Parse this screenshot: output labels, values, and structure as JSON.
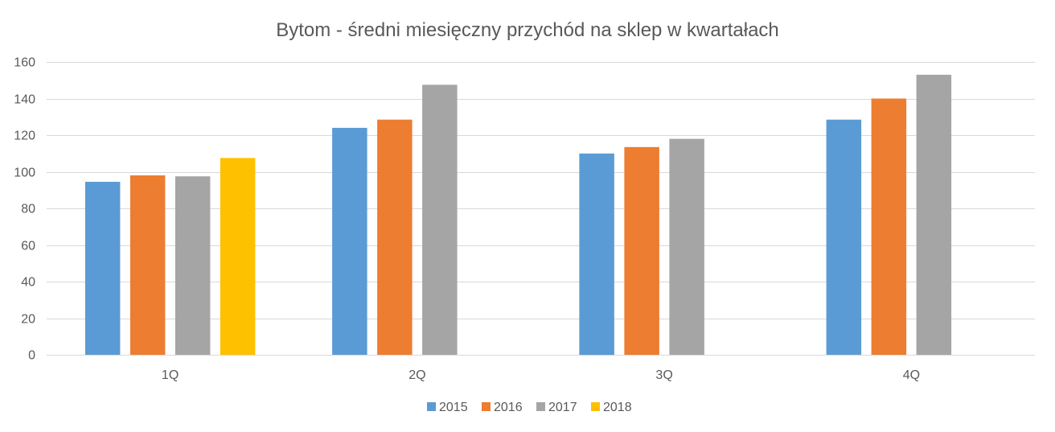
{
  "chart_data": {
    "type": "bar",
    "title": "Bytom - średni miesięczny przychód na sklep w kwartałach",
    "xlabel": "",
    "ylabel": "",
    "categories": [
      "1Q",
      "2Q",
      "3Q",
      "4Q"
    ],
    "series": [
      {
        "name": "2015",
        "color": "#5b9bd5",
        "values": [
          94.5,
          124,
          110,
          128.5
        ]
      },
      {
        "name": "2016",
        "color": "#ed7d31",
        "values": [
          98,
          128.5,
          113.5,
          140
        ]
      },
      {
        "name": "2017",
        "color": "#a5a5a5",
        "values": [
          97.5,
          147.5,
          118,
          153
        ]
      },
      {
        "name": "2018",
        "color": "#ffc000",
        "values": [
          107.5,
          null,
          null,
          null
        ]
      }
    ],
    "ylim": [
      0,
      160
    ],
    "yticks": [
      0,
      20,
      40,
      60,
      80,
      100,
      120,
      140,
      160
    ],
    "grid": true,
    "legend_position": "bottom"
  }
}
